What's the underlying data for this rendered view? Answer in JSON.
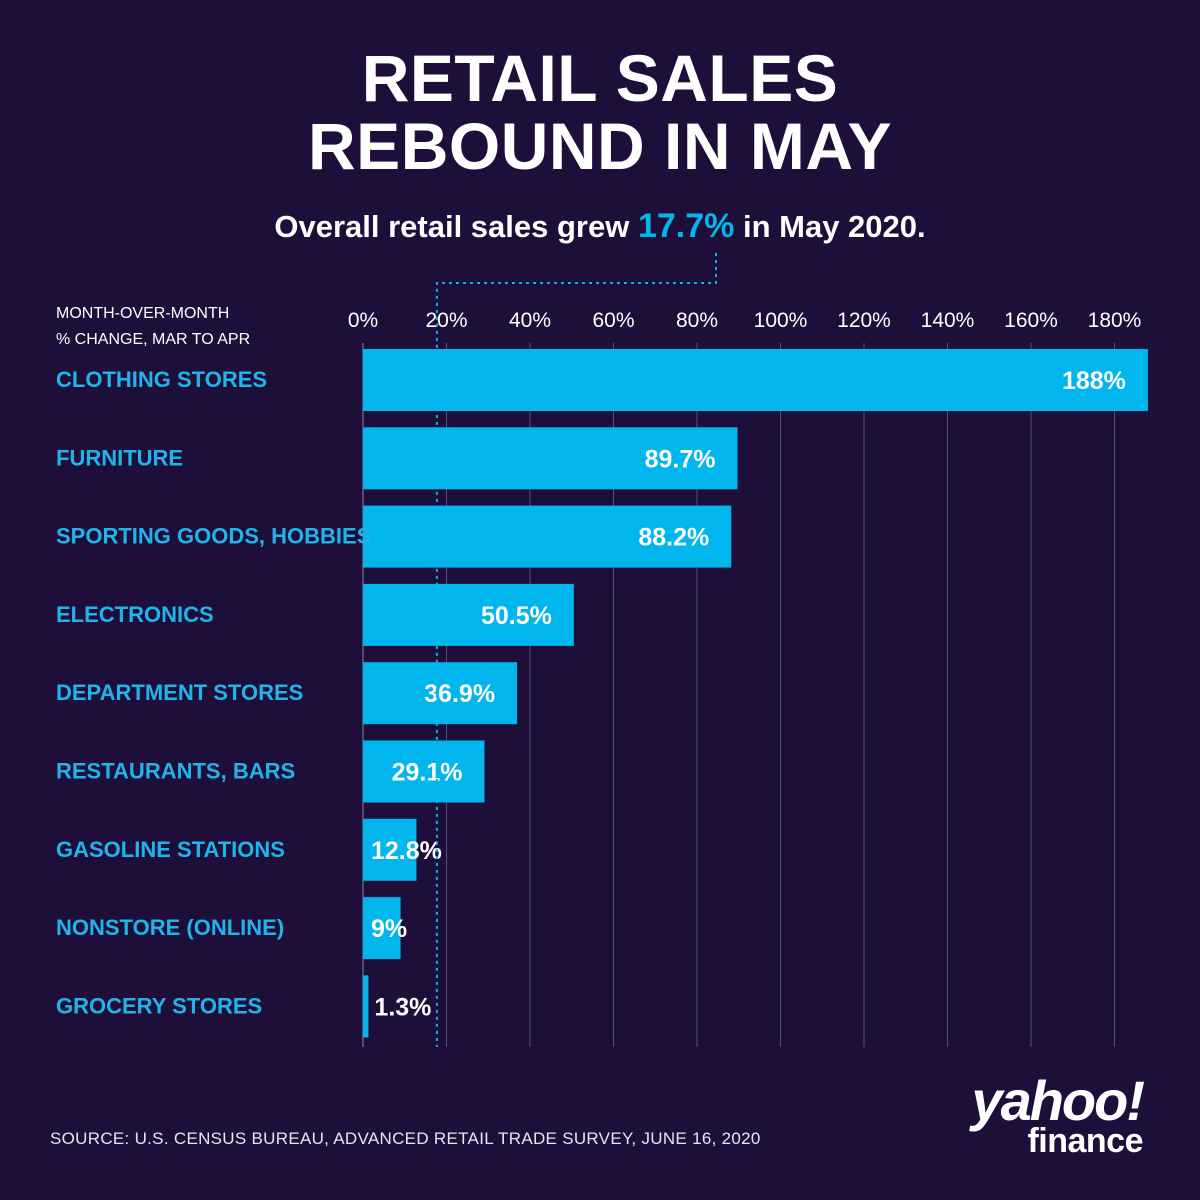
{
  "title": "RETAIL SALES\nREBOUND IN MAY",
  "subtitle": {
    "prefix": "Overall retail sales grew ",
    "highlight": "17.7%",
    "suffix": " in May 2020."
  },
  "axis_caption": [
    "MONTH-OVER-MONTH",
    "% CHANGE, MAR TO APR"
  ],
  "source": "SOURCE:  U.S. CENSUS BUREAU, ADVANCED RETAIL TRADE SURVEY, JUNE 16, 2020",
  "logo": {
    "line1": "yahoo!",
    "line2": "finance"
  },
  "colors": {
    "background": "#1e0f3a",
    "bar": "#00b6ec",
    "category_label": "#1fb4ea",
    "gridline": "#5a4f78",
    "text": "#ffffff"
  },
  "chart_data": {
    "type": "bar",
    "orientation": "horizontal",
    "categories": [
      "CLOTHING STORES",
      "FURNITURE",
      "SPORTING GOODS, HOBBIES",
      "ELECTRONICS",
      "DEPARTMENT STORES",
      "RESTAURANTS, BARS",
      "GASOLINE STATIONS",
      "NONSTORE (ONLINE)",
      "GROCERY STORES"
    ],
    "values": [
      188,
      89.7,
      88.2,
      50.5,
      36.9,
      29.1,
      12.8,
      9,
      1.3
    ],
    "data_labels": [
      "188%",
      "89.7%",
      "88.2%",
      "50.5%",
      "36.9%",
      "29.1%",
      "12.8%",
      "9%",
      "1.3%"
    ],
    "ticks": [
      0,
      20,
      40,
      60,
      80,
      100,
      120,
      140,
      160,
      180
    ],
    "tick_labels": [
      "0%",
      "20%",
      "40%",
      "60%",
      "80%",
      "100%",
      "120%",
      "140%",
      "160%",
      "180%"
    ],
    "xlim": [
      0,
      188
    ],
    "reference_line": {
      "value": 17.7
    },
    "grid": true,
    "axis_position": "top"
  }
}
